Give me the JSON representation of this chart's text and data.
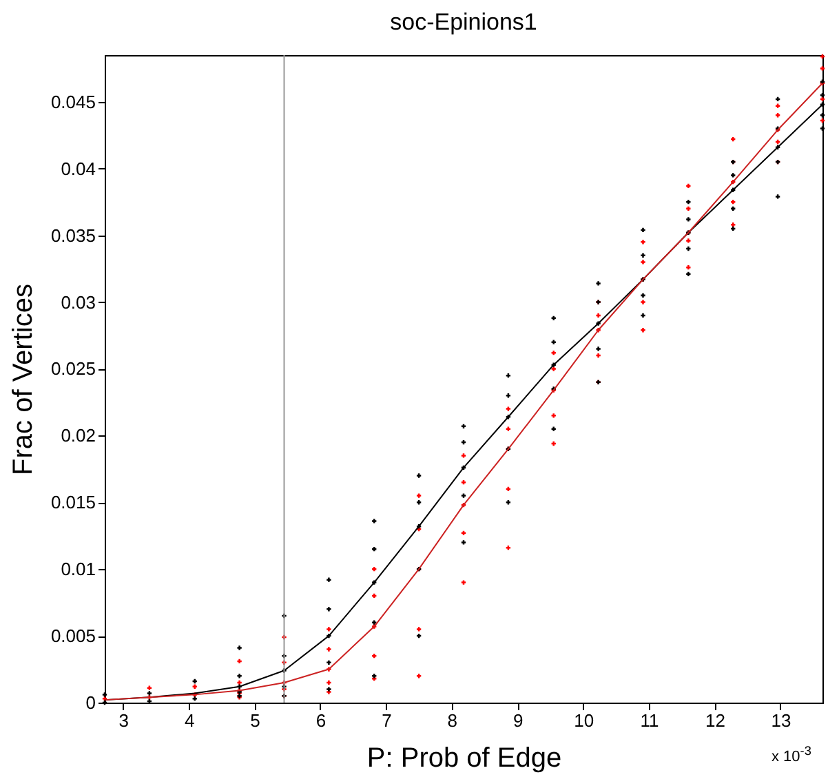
{
  "chart_data": {
    "type": "line",
    "title": "soc-Epinions1",
    "xlabel": "P: Prob of Edge",
    "ylabel": "Frac of Vertices",
    "annotations": [
      "x 10$^{-3}$"
    ],
    "x": [
      2.72,
      3.4,
      4.09,
      4.77,
      5.45,
      6.13,
      6.82,
      7.5,
      8.18,
      8.86,
      9.55,
      10.23,
      10.91,
      11.6,
      12.28,
      12.96,
      13.64
    ],
    "series": [
      {
        "type": "scatter",
        "marker": "cross",
        "color": "#ff0000",
        "x": [
          2.72,
          3.4,
          3.4,
          4.09,
          4.09,
          4.77,
          4.77,
          4.77,
          4.77,
          4.77,
          5.45,
          5.45,
          5.45,
          5.45,
          5.45,
          6.13,
          6.13,
          6.13,
          6.13,
          6.13,
          6.82,
          6.82,
          6.82,
          6.82,
          6.82,
          7.5,
          7.5,
          7.5,
          7.5,
          7.5,
          8.18,
          8.18,
          8.18,
          8.18,
          8.18,
          8.86,
          8.86,
          8.86,
          8.86,
          8.86,
          9.55,
          9.55,
          9.55,
          9.55,
          9.55,
          10.23,
          10.23,
          10.23,
          10.23,
          10.23,
          10.91,
          10.91,
          10.91,
          10.91,
          10.91,
          11.6,
          11.6,
          11.6,
          11.6,
          11.6,
          12.28,
          12.28,
          12.28,
          12.28,
          12.28,
          12.96,
          12.96,
          12.96,
          12.96,
          12.96,
          13.64,
          13.64,
          13.64,
          13.64,
          13.64
        ],
        "values": [
          0.0003,
          0.0004,
          0.0011,
          0.0006,
          0.0012,
          0.0004,
          0.0007,
          0.0009,
          0.0015,
          0.0031,
          0.0005,
          0.001,
          0.0015,
          0.003,
          0.0049,
          0.0008,
          0.0015,
          0.0025,
          0.004,
          0.0055,
          0.0018,
          0.0035,
          0.0057,
          0.008,
          0.01,
          0.002,
          0.0055,
          0.01,
          0.013,
          0.0155,
          0.009,
          0.0127,
          0.0148,
          0.0165,
          0.0185,
          0.0116,
          0.016,
          0.019,
          0.0205,
          0.022,
          0.0194,
          0.0215,
          0.0234,
          0.025,
          0.0262,
          0.024,
          0.026,
          0.0279,
          0.029,
          0.03,
          0.0279,
          0.03,
          0.0317,
          0.033,
          0.0345,
          0.0326,
          0.0346,
          0.0352,
          0.037,
          0.0387,
          0.0358,
          0.0375,
          0.039,
          0.0405,
          0.0422,
          0.0405,
          0.042,
          0.0429,
          0.044,
          0.0447,
          0.0436,
          0.0452,
          0.0464,
          0.0475,
          0.0484
        ]
      },
      {
        "type": "scatter",
        "marker": "cross",
        "color": "#000000",
        "x": [
          2.72,
          2.72,
          3.4,
          3.4,
          4.09,
          4.09,
          4.77,
          4.77,
          4.77,
          4.77,
          4.77,
          5.45,
          5.45,
          5.45,
          5.45,
          5.45,
          6.13,
          6.13,
          6.13,
          6.13,
          6.13,
          6.82,
          6.82,
          6.82,
          6.82,
          6.82,
          7.5,
          7.5,
          7.5,
          7.5,
          7.5,
          8.18,
          8.18,
          8.18,
          8.18,
          8.18,
          8.86,
          8.86,
          8.86,
          8.86,
          8.86,
          9.55,
          9.55,
          9.55,
          9.55,
          9.55,
          10.23,
          10.23,
          10.23,
          10.23,
          10.23,
          10.91,
          10.91,
          10.91,
          10.91,
          10.91,
          11.6,
          11.6,
          11.6,
          11.6,
          11.6,
          12.28,
          12.28,
          12.28,
          12.28,
          12.28,
          12.96,
          12.96,
          12.96,
          12.96,
          12.96,
          13.64,
          13.64,
          13.64,
          13.64,
          13.64
        ],
        "values": [
          0.0,
          0.0006,
          0.0001,
          0.0007,
          0.0003,
          0.0016,
          0.0005,
          0.0008,
          0.0012,
          0.002,
          0.0041,
          0.0005,
          0.0012,
          0.0024,
          0.0035,
          0.0065,
          0.001,
          0.003,
          0.005,
          0.007,
          0.0092,
          0.002,
          0.006,
          0.009,
          0.0115,
          0.0136,
          0.005,
          0.01,
          0.0132,
          0.015,
          0.017,
          0.012,
          0.0155,
          0.0176,
          0.0195,
          0.0207,
          0.015,
          0.019,
          0.0214,
          0.023,
          0.0245,
          0.0205,
          0.0235,
          0.0253,
          0.027,
          0.0288,
          0.024,
          0.0265,
          0.0284,
          0.03,
          0.0314,
          0.029,
          0.0305,
          0.0317,
          0.0335,
          0.0354,
          0.0321,
          0.034,
          0.0352,
          0.0362,
          0.0375,
          0.0355,
          0.037,
          0.0384,
          0.0395,
          0.0405,
          0.0379,
          0.0405,
          0.0416,
          0.043,
          0.0452,
          0.043,
          0.044,
          0.0448,
          0.0455,
          0.0465
        ]
      },
      {
        "color": "#000000",
        "values": [
          0.0002,
          0.0004,
          0.0007,
          0.0012,
          0.0024,
          0.005,
          0.009,
          0.0132,
          0.0176,
          0.0214,
          0.0253,
          0.0284,
          0.0317,
          0.0352,
          0.0384,
          0.0416,
          0.0448
        ]
      },
      {
        "color": "#cc2222",
        "values": [
          0.0002,
          0.0004,
          0.0006,
          0.0009,
          0.0015,
          0.0025,
          0.0057,
          0.01,
          0.0148,
          0.019,
          0.0234,
          0.0279,
          0.0317,
          0.0352,
          0.039,
          0.0429,
          0.0464
        ]
      }
    ],
    "xlim": [
      2.72,
      13.64
    ],
    "xticks": [
      3,
      4,
      5,
      6,
      7,
      8,
      9,
      10,
      11,
      12,
      13
    ],
    "ylim": [
      0,
      0.0485
    ],
    "yticks": [
      0,
      0.005,
      0.01,
      0.015,
      0.02,
      0.025,
      0.03,
      0.035,
      0.04,
      0.045
    ],
    "ref_lines": [
      {
        "axis": "x",
        "value": 5.45,
        "color": "#999999"
      }
    ]
  }
}
